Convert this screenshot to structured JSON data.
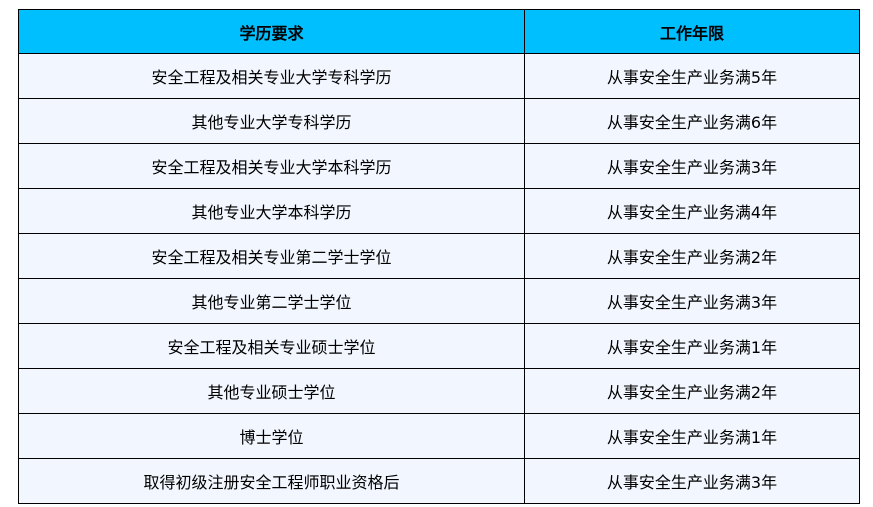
{
  "header": {
    "education": "学历要求",
    "years": "工作年限"
  },
  "colors": {
    "header_bg": "#00bfff",
    "row_bg": "#f2f6fe"
  },
  "rows": [
    {
      "education": "安全工程及相关专业大学专科学历",
      "years": "从事安全生产业务满5年"
    },
    {
      "education": "其他专业大学专科学历",
      "years": "从事安全生产业务满6年"
    },
    {
      "education": "安全工程及相关专业大学本科学历",
      "years": "从事安全生产业务满3年"
    },
    {
      "education": "其他专业大学本科学历",
      "years": "从事安全生产业务满4年"
    },
    {
      "education": "安全工程及相关专业第二学士学位",
      "years": "从事安全生产业务满2年"
    },
    {
      "education": "其他专业第二学士学位",
      "years": "从事安全生产业务满3年"
    },
    {
      "education": "安全工程及相关专业硕士学位",
      "years": "从事安全生产业务满1年"
    },
    {
      "education": "其他专业硕士学位",
      "years": "从事安全生产业务满2年"
    },
    {
      "education": "博士学位",
      "years": "从事安全生产业务满1年"
    },
    {
      "education": "取得初级注册安全工程师职业资格后",
      "years": "从事安全生产业务满3年"
    }
  ]
}
